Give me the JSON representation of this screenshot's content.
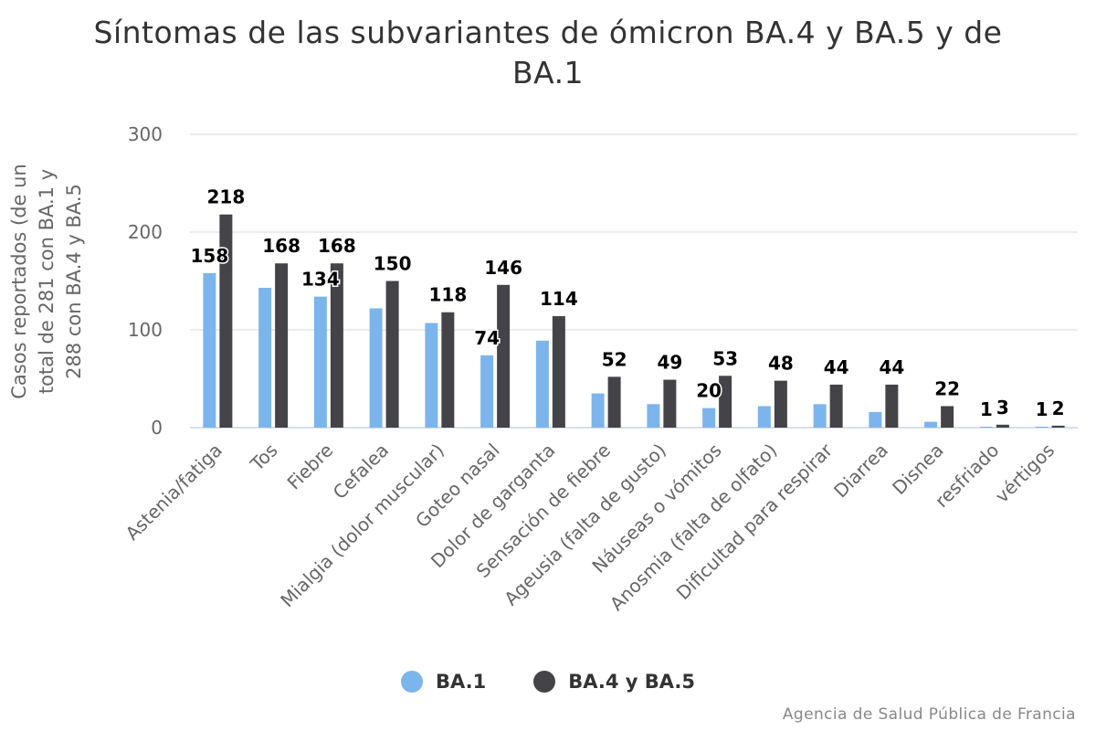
{
  "chart_data": {
    "type": "bar",
    "title": "Síntomas de las subvariantes de ómicron BA.4 y BA.5 y de BA.1",
    "ylabel": "Casos reportados (de un total de 281 con BA.1 y 288 con BA.4 y BA.5",
    "xlabel": "",
    "ylim": [
      0,
      300
    ],
    "yticks": [
      0,
      100,
      200,
      300
    ],
    "grid": true,
    "legend_position": "bottom",
    "categories": [
      "Astenia/fatiga",
      "Tos",
      "Fiebre",
      "Cefalea",
      "Mialgia (dolor muscular)",
      "Goteo nasal",
      "Dolor de garganta",
      "Sensación de fiebre",
      "Ageusia (falta de gusto)",
      "Náuseas o vómitos",
      "Anosmia (falta de olfato)",
      "Dificultad para respirar",
      "Diarrea",
      "Disnea",
      "resfriado",
      "vértigos"
    ],
    "series": [
      {
        "name": "BA.1",
        "color": "#7cb5ec",
        "values": [
          158,
          143,
          134,
          122,
          107,
          74,
          89,
          35,
          24,
          20,
          22,
          24,
          16,
          6,
          1,
          1
        ],
        "labels": [
          "158",
          "",
          "134",
          "",
          "",
          "74",
          "",
          "",
          "",
          "20",
          "",
          "",
          "",
          "",
          "1",
          "1"
        ]
      },
      {
        "name": "BA.4 y BA.5",
        "color": "#434348",
        "values": [
          218,
          168,
          168,
          150,
          118,
          146,
          114,
          52,
          49,
          53,
          48,
          44,
          44,
          22,
          3,
          2
        ],
        "labels": [
          "218",
          "168",
          "168",
          "150",
          "118",
          "146",
          "114",
          "52",
          "49",
          "53",
          "48",
          "44",
          "44",
          "22",
          "3",
          "2"
        ]
      }
    ]
  },
  "credit": "Agencia de Salud Pública de Francia"
}
